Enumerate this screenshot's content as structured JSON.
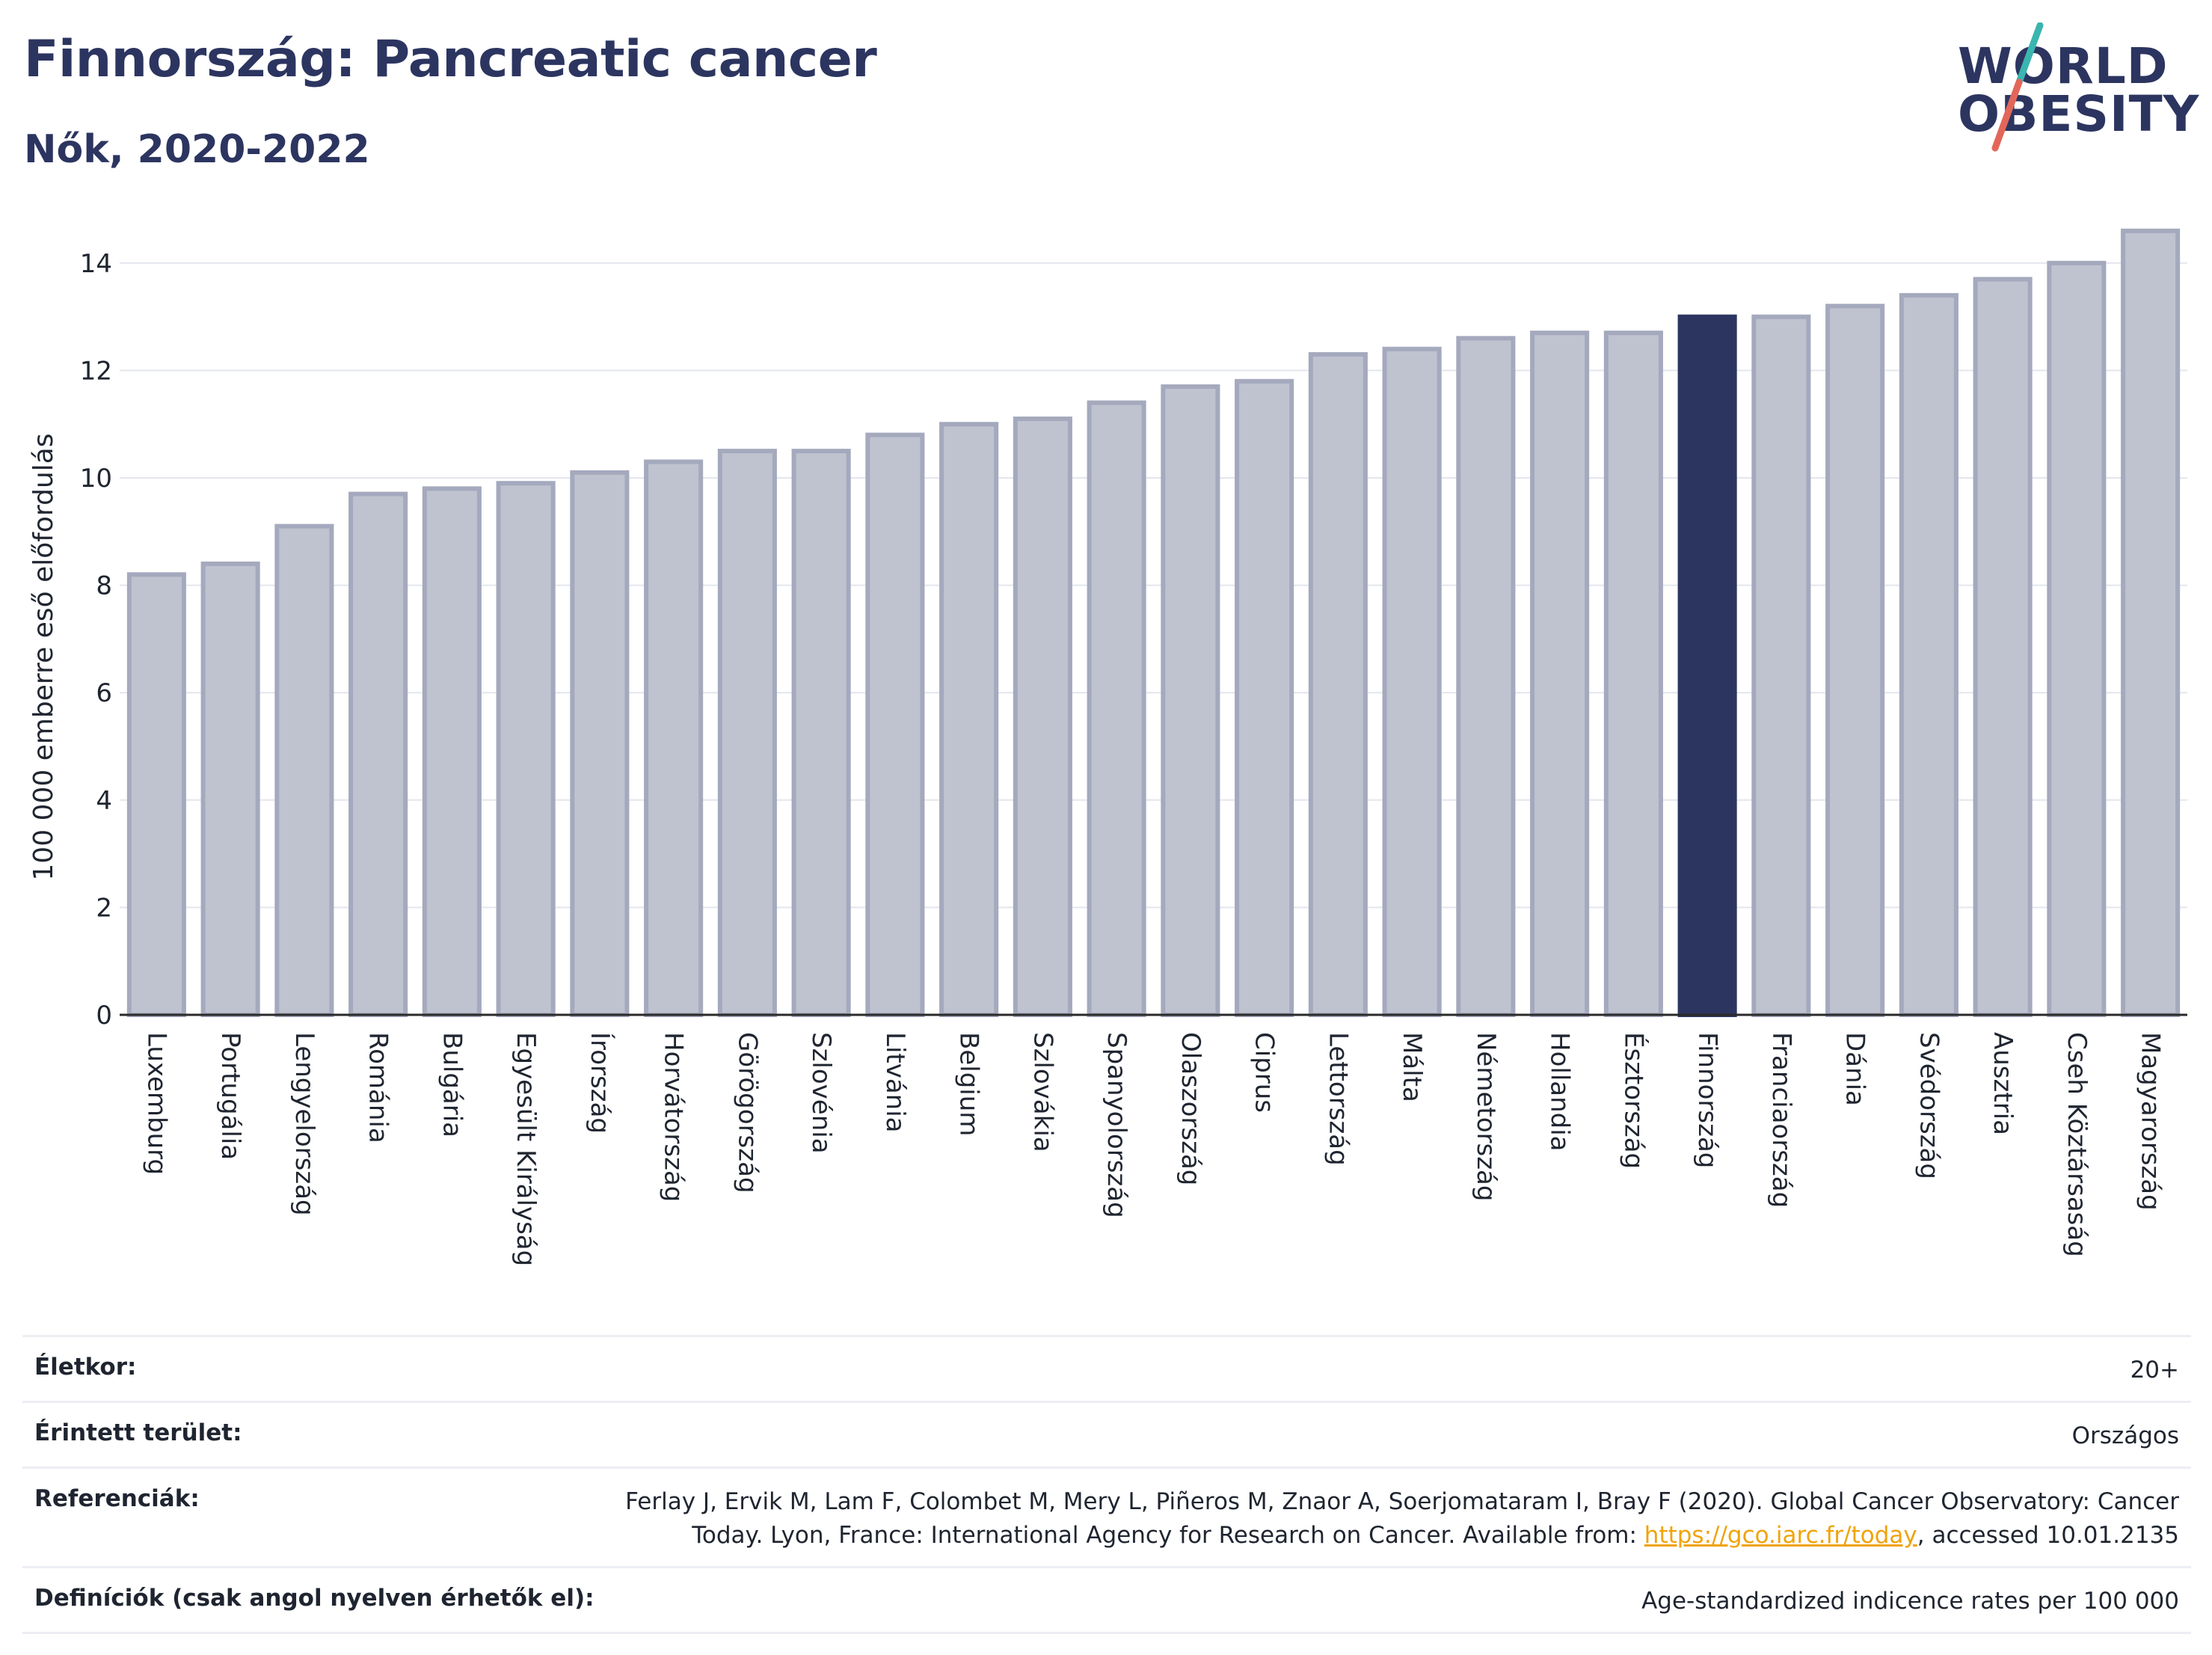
{
  "header": {
    "title": "Finnország: Pancreatic cancer",
    "subtitle": "Nők, 2020-2022"
  },
  "logo": {
    "line1": "WORLD",
    "line2": "OBESITY",
    "accent_teal": "#3ab5b0",
    "accent_red": "#e2675a"
  },
  "colors": {
    "bar_fill": "#bfc3d0",
    "bar_stroke": "#a4a9bd",
    "highlight_fill": "#2c3560",
    "title": "#2c3560",
    "grid": "#e4e6ee",
    "link": "#f0a30a"
  },
  "chart_data": {
    "type": "bar",
    "title": "Finnország: Pancreatic cancer",
    "subtitle": "Nők, 2020-2022",
    "ylabel": "100 000 emberre eső előfordulás",
    "xlabel": "",
    "ylim": [
      0,
      15
    ],
    "yticks": [
      0,
      2,
      4,
      6,
      8,
      10,
      12,
      14
    ],
    "grid": true,
    "highlight": "Finnország",
    "categories": [
      "Luxemburg",
      "Portugália",
      "Lengyelország",
      "Románia",
      "Bulgária",
      "Egyesült Királyság",
      "Írország",
      "Horvátország",
      "Görögország",
      "Szlovénia",
      "Litvánia",
      "Belgium",
      "Szlovákia",
      "Spanyolország",
      "Olaszország",
      "Ciprus",
      "Lettország",
      "Málta",
      "Németország",
      "Hollandia",
      "Észtország",
      "Finnország",
      "Franciaország",
      "Dánia",
      "Svédország",
      "Ausztria",
      "Cseh Köztársaság",
      "Magyarország"
    ],
    "values": [
      8.2,
      8.4,
      9.1,
      9.7,
      9.8,
      9.9,
      10.1,
      10.3,
      10.5,
      10.5,
      10.8,
      11.0,
      11.1,
      11.4,
      11.7,
      11.8,
      12.3,
      12.4,
      12.6,
      12.7,
      12.7,
      13.0,
      13.0,
      13.2,
      13.4,
      13.7,
      14.0,
      14.6
    ]
  },
  "info": {
    "age_label": "Életkor:",
    "age_value": "20+",
    "area_label": "Érintett terület:",
    "area_value": "Országos",
    "ref_label": "Referenciák:",
    "ref_text_1": "Ferlay J, Ervik M, Lam F, Colombet M, Mery L, Piñeros M, Znaor A, Soerjomataram I, Bray F (2020). Global Cancer Observatory: Cancer Today. Lyon, France: International Agency for Research on Cancer. Available from: ",
    "ref_link": "https://gco.iarc.fr/today",
    "ref_text_2": ", accessed 10.01.2135",
    "def_label": "Definíciók (csak angol nyelven érhetők el):",
    "def_value": "Age-standardized indicence rates per 100 000"
  }
}
